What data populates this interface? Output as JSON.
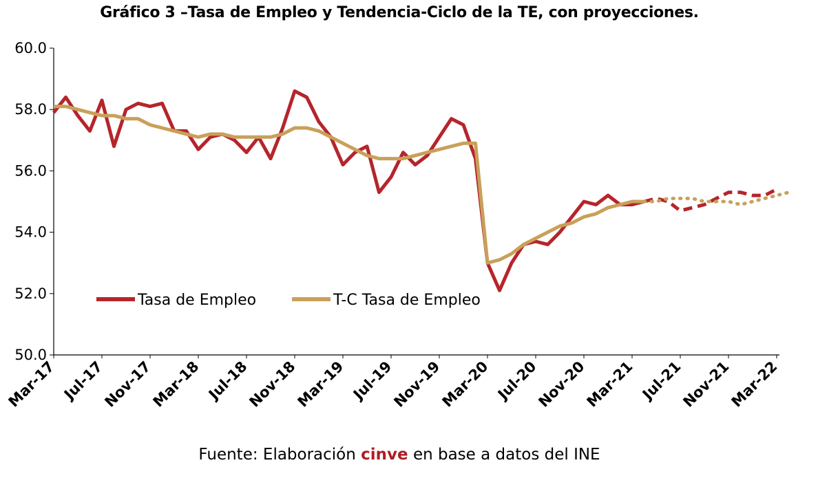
{
  "title": "Gráfico 3 –Tasa de Empleo y Tendencia-Ciclo de la TE, con proyecciones.",
  "source": {
    "prefix": "Fuente: Elaboración ",
    "brand": "cinve",
    "suffix": " en base a datos del INE"
  },
  "colors": {
    "te": "#b5252b",
    "tc": "#c9a05a",
    "axis": "#000000"
  },
  "chart_data": {
    "type": "line",
    "ylim": [
      50,
      60
    ],
    "yticks": [
      "50.0",
      "52.0",
      "54.0",
      "56.0",
      "58.0",
      "60.0"
    ],
    "x_tick_labels": [
      "Mar-17",
      "Jul-17",
      "Nov-17",
      "Mar-18",
      "Jul-18",
      "Nov-18",
      "Mar-19",
      "Jul-19",
      "Nov-19",
      "Mar-20",
      "Jul-20",
      "Nov-20",
      "Mar-21",
      "Jul-21",
      "Nov-21",
      "Mar-22"
    ],
    "grid": false,
    "legend": "inside-left",
    "series": [
      {
        "name": "Tasa de Empleo",
        "values": [
          57.9,
          58.4,
          57.8,
          57.3,
          58.3,
          56.8,
          58.0,
          58.2,
          58.1,
          58.2,
          57.3,
          57.3,
          56.7,
          57.1,
          57.2,
          57.0,
          56.6,
          57.1,
          56.4,
          57.4,
          58.6,
          58.4,
          57.6,
          57.1,
          56.2,
          56.6,
          56.8,
          55.3,
          55.8,
          56.6,
          56.2,
          56.5,
          57.1,
          57.7,
          57.5,
          56.4,
          53.0,
          52.1,
          53.0,
          53.6,
          53.7,
          53.6,
          54.0,
          54.5,
          55.0,
          54.9,
          55.2,
          54.9,
          54.9,
          55.0
        ],
        "projection_dashed": [
          55.0,
          55.1,
          55.0,
          54.7,
          54.8,
          54.9,
          55.1,
          55.3,
          55.3,
          55.2,
          55.2,
          55.4
        ]
      },
      {
        "name": "T-C Tasa de Empleo",
        "values": [
          58.1,
          58.1,
          58.0,
          57.9,
          57.8,
          57.8,
          57.7,
          57.7,
          57.5,
          57.4,
          57.3,
          57.2,
          57.1,
          57.2,
          57.2,
          57.1,
          57.1,
          57.1,
          57.1,
          57.2,
          57.4,
          57.4,
          57.3,
          57.1,
          56.9,
          56.7,
          56.5,
          56.4,
          56.4,
          56.4,
          56.5,
          56.6,
          56.7,
          56.8,
          56.9,
          56.9,
          53.0,
          53.1,
          53.3,
          53.6,
          53.8,
          54.0,
          54.2,
          54.3,
          54.5,
          54.6,
          54.8,
          54.9,
          55.0,
          55.0
        ],
        "projection_dotted": [
          55.0,
          55.0,
          55.1,
          55.1,
          55.1,
          55.0,
          55.0,
          55.0,
          54.9,
          55.0,
          55.1,
          55.2,
          55.3
        ]
      }
    ]
  }
}
